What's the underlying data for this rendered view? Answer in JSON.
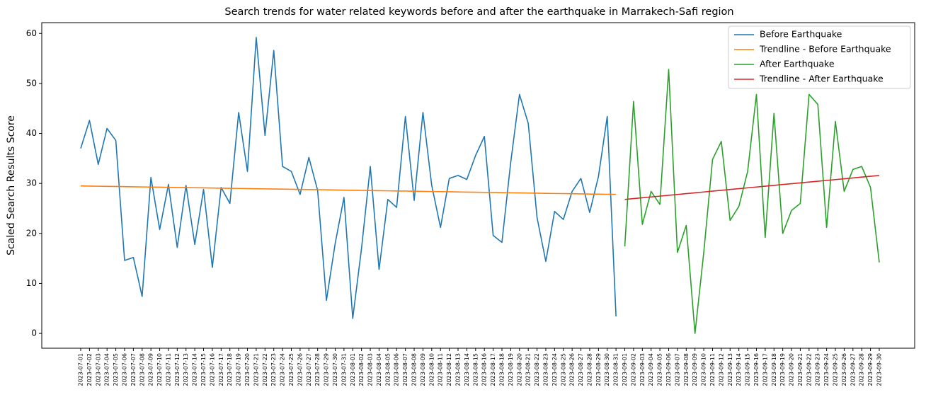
{
  "chart_data": {
    "type": "line",
    "title": "Search trends for water related keywords before and after the earthquake in Marrakech-Safi region",
    "ylabel": "Scaled Search Results Score",
    "categories": [
      "2023-07-01",
      "2023-07-02",
      "2023-07-03",
      "2023-07-04",
      "2023-07-05",
      "2023-07-06",
      "2023-07-07",
      "2023-07-08",
      "2023-07-09",
      "2023-07-10",
      "2023-07-11",
      "2023-07-12",
      "2023-07-13",
      "2023-07-14",
      "2023-07-15",
      "2023-07-16",
      "2023-07-17",
      "2023-07-18",
      "2023-07-19",
      "2023-07-20",
      "2023-07-21",
      "2023-07-22",
      "2023-07-23",
      "2023-07-24",
      "2023-07-25",
      "2023-07-26",
      "2023-07-27",
      "2023-07-28",
      "2023-07-29",
      "2023-07-30",
      "2023-07-31",
      "2023-08-01",
      "2023-08-02",
      "2023-08-03",
      "2023-08-04",
      "2023-08-05",
      "2023-08-06",
      "2023-08-07",
      "2023-08-08",
      "2023-08-09",
      "2023-08-10",
      "2023-08-11",
      "2023-08-12",
      "2023-08-13",
      "2023-08-14",
      "2023-08-15",
      "2023-08-16",
      "2023-08-17",
      "2023-08-18",
      "2023-08-19",
      "2023-08-20",
      "2023-08-21",
      "2023-08-22",
      "2023-08-23",
      "2023-08-24",
      "2023-08-25",
      "2023-08-26",
      "2023-08-27",
      "2023-08-28",
      "2023-08-29",
      "2023-08-30",
      "2023-08-31",
      "2023-09-01",
      "2023-09-02",
      "2023-09-03",
      "2023-09-04",
      "2023-09-05",
      "2023-09-06",
      "2023-09-07",
      "2023-09-08",
      "2023-09-09",
      "2023-09-10",
      "2023-09-11",
      "2023-09-12",
      "2023-09-13",
      "2023-09-14",
      "2023-09-15",
      "2023-09-16",
      "2023-09-17",
      "2023-09-18",
      "2023-09-19",
      "2023-09-20",
      "2023-09-21",
      "2023-09-22",
      "2023-09-23",
      "2023-09-24",
      "2023-09-25",
      "2023-09-26",
      "2023-09-27",
      "2023-09-28",
      "2023-09-29",
      "2023-09-30"
    ],
    "series": [
      {
        "name": "Before Earthquake",
        "color": "#1f77b4",
        "values": [
          37,
          42.6,
          33.8,
          41,
          38.6,
          14.6,
          15.2,
          7.4,
          31.2,
          20.8,
          29.8,
          17.2,
          29.6,
          17.8,
          28.8,
          13.2,
          29.2,
          26,
          44.2,
          32.4,
          59.2,
          39.6,
          56.6,
          33.4,
          32.4,
          27.8,
          35.2,
          28.6,
          6.6,
          18,
          27.2,
          3,
          17,
          33.4,
          12.8,
          26.8,
          25.2,
          43.4,
          26.6,
          44.2,
          29.6,
          21.2,
          31,
          31.6,
          30.8,
          35.6,
          39.4,
          19.6,
          18.2,
          34.2,
          47.8,
          42,
          23.2,
          14.4,
          24.4,
          22.8,
          28.4,
          31,
          24.2,
          31.4,
          43.4,
          3.4,
          null,
          null,
          null,
          null,
          null,
          null,
          null,
          null,
          null,
          null,
          null,
          null,
          null,
          null,
          null,
          null,
          null,
          null,
          null,
          null,
          null,
          null,
          null,
          null,
          null,
          null,
          null,
          null,
          null,
          null
        ]
      },
      {
        "name": "Trendline - Before Earthquake",
        "color": "#ff7f0e",
        "values": [
          29.5,
          29.47,
          29.44,
          29.42,
          29.39,
          29.36,
          29.33,
          29.3,
          29.28,
          29.25,
          29.22,
          29.19,
          29.17,
          29.14,
          29.11,
          29.08,
          29.05,
          29.03,
          29,
          28.97,
          28.94,
          28.91,
          28.89,
          28.86,
          28.83,
          28.8,
          28.77,
          28.75,
          28.72,
          28.69,
          28.66,
          28.64,
          28.61,
          28.58,
          28.55,
          28.52,
          28.5,
          28.47,
          28.44,
          28.41,
          28.38,
          28.36,
          28.33,
          28.3,
          28.27,
          28.24,
          28.22,
          28.19,
          28.16,
          28.13,
          28.1,
          28.08,
          28.05,
          28.02,
          27.99,
          27.97,
          27.94,
          27.91,
          27.88,
          27.85,
          27.83,
          27.8,
          null,
          null,
          null,
          null,
          null,
          null,
          null,
          null,
          null,
          null,
          null,
          null,
          null,
          null,
          null,
          null,
          null,
          null,
          null,
          null,
          null,
          null,
          null,
          null,
          null,
          null,
          null,
          null,
          null,
          null
        ]
      },
      {
        "name": "After Earthquake",
        "color": "#2ca02c",
        "values": [
          null,
          null,
          null,
          null,
          null,
          null,
          null,
          null,
          null,
          null,
          null,
          null,
          null,
          null,
          null,
          null,
          null,
          null,
          null,
          null,
          null,
          null,
          null,
          null,
          null,
          null,
          null,
          null,
          null,
          null,
          null,
          null,
          null,
          null,
          null,
          null,
          null,
          null,
          null,
          null,
          null,
          null,
          null,
          null,
          null,
          null,
          null,
          null,
          null,
          null,
          null,
          null,
          null,
          null,
          null,
          null,
          null,
          null,
          null,
          null,
          null,
          null,
          17.4,
          46.4,
          21.8,
          28.4,
          25.8,
          52.8,
          16.2,
          21.6,
          0,
          16.2,
          34.8,
          38.4,
          22.6,
          25.4,
          32.4,
          47.8,
          19.2,
          44,
          20,
          24.6,
          26,
          47.8,
          45.8,
          21.2,
          42.4,
          28.4,
          32.8,
          33.4,
          29.2,
          14.2
        ]
      },
      {
        "name": "Trendline - After Earthquake",
        "color": "#d62728",
        "values": [
          null,
          null,
          null,
          null,
          null,
          null,
          null,
          null,
          null,
          null,
          null,
          null,
          null,
          null,
          null,
          null,
          null,
          null,
          null,
          null,
          null,
          null,
          null,
          null,
          null,
          null,
          null,
          null,
          null,
          null,
          null,
          null,
          null,
          null,
          null,
          null,
          null,
          null,
          null,
          null,
          null,
          null,
          null,
          null,
          null,
          null,
          null,
          null,
          null,
          null,
          null,
          null,
          null,
          null,
          null,
          null,
          null,
          null,
          null,
          null,
          null,
          null,
          26.8,
          26.97,
          27.13,
          27.3,
          27.46,
          27.63,
          27.79,
          27.96,
          28.12,
          28.29,
          28.46,
          28.62,
          28.79,
          28.95,
          29.12,
          29.28,
          29.45,
          29.61,
          29.78,
          29.94,
          30.11,
          30.28,
          30.44,
          30.61,
          30.77,
          30.94,
          31.1,
          31.27,
          31.43,
          31.6
        ]
      }
    ],
    "ylim": [
      -2.96,
      62.16
    ],
    "yticks": [
      0,
      10,
      20,
      30,
      40,
      50,
      60
    ],
    "grid": false,
    "legend": "upper right"
  }
}
